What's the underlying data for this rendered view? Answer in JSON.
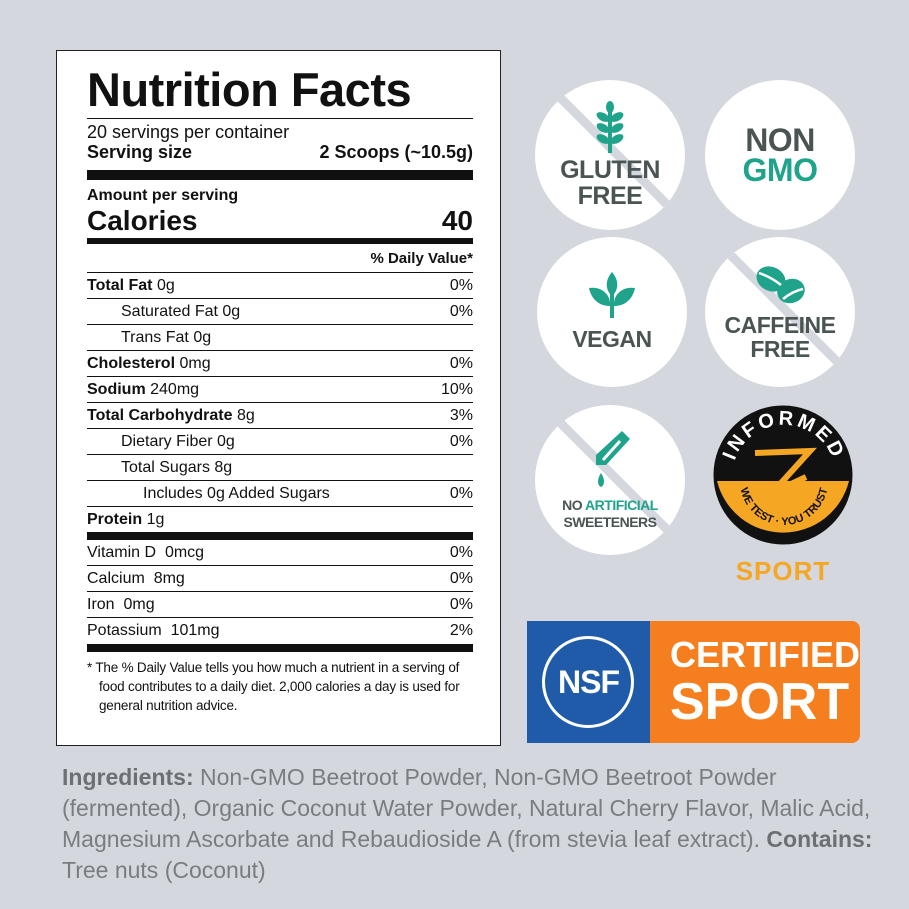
{
  "label": {
    "title": "Nutrition Facts",
    "servings": "20 servings per container",
    "serving_size_label": "Serving size",
    "serving_size_value": "2 Scoops (~10.5g)",
    "amount_per_serving": "Amount per serving",
    "calories_label": "Calories",
    "calories_value": "40",
    "daily_value_header": "% Daily Value*",
    "rows": [
      {
        "name": "Total Fat",
        "amount": "0g",
        "dv": "0%",
        "bold": true,
        "indent": 0
      },
      {
        "name": "Saturated Fat",
        "amount": "0g",
        "dv": "0%",
        "bold": false,
        "indent": 1
      },
      {
        "name": "Trans Fat",
        "amount": "0g",
        "dv": "",
        "bold": false,
        "indent": 1
      },
      {
        "name": "Cholesterol",
        "amount": "0mg",
        "dv": "0%",
        "bold": true,
        "indent": 0
      },
      {
        "name": "Sodium",
        "amount": "240mg",
        "dv": "10%",
        "bold": true,
        "indent": 0
      },
      {
        "name": "Total Carbohydrate",
        "amount": "8g",
        "dv": "3%",
        "bold": true,
        "indent": 0
      },
      {
        "name": "Dietary Fiber",
        "amount": "0g",
        "dv": "0%",
        "bold": false,
        "indent": 1
      },
      {
        "name": "Total Sugars",
        "amount": "8g",
        "dv": "",
        "bold": false,
        "indent": 1
      },
      {
        "name": "Includes 0g Added Sugars",
        "amount": "",
        "dv": "0%",
        "bold": false,
        "indent": 2
      },
      {
        "name": "Protein",
        "amount": "1g",
        "dv": "",
        "bold": true,
        "indent": 0
      }
    ],
    "vitamins": [
      {
        "name": "Vitamin D",
        "amount": "0mcg",
        "dv": "0%"
      },
      {
        "name": "Calcium",
        "amount": "8mg",
        "dv": "0%"
      },
      {
        "name": "Iron",
        "amount": "0mg",
        "dv": "0%"
      },
      {
        "name": "Potassium",
        "amount": "101mg",
        "dv": "2%"
      }
    ],
    "footnote": "* The % Daily Value tells you how much a nutrient in a serving of food contributes to a daily diet. 2,000 calories a day is used for general nutrition advice."
  },
  "badges": {
    "gluten": {
      "line1": "GLUTEN",
      "line2": "FREE",
      "icon": "wheat-icon"
    },
    "nongmo": {
      "line1": "NON",
      "line2": "GMO"
    },
    "vegan": {
      "line1": "VEGAN",
      "icon": "leaf-icon"
    },
    "caffeine": {
      "line1": "CAFFEINE",
      "line2": "FREE",
      "icon": "coffee-bean-icon"
    },
    "sweeteners": {
      "line1a": "NO ",
      "line1b": "ARTIFICIAL",
      "line2": "SWEETENERS",
      "icon": "dropper-icon"
    },
    "informed": {
      "top": "INFORMED",
      "bottom": "WE TEST · YOU TRUST",
      "sport": "SPORT"
    },
    "nsf": {
      "logo": "NSF",
      "line1": "CERTIFIED",
      "line2": "SPORT"
    }
  },
  "colors": {
    "teal": "#1fa38a",
    "gray_text": "#4a5553",
    "nsf_blue": "#1f5ba8",
    "nsf_orange": "#f57f1f",
    "informed_yellow": "#f5a623",
    "background": "#d4d8de"
  },
  "ingredients": {
    "label": "Ingredients:",
    "text": " Non-GMO Beetroot Powder, Non-GMO Beetroot Powder (fermented), Organic Coconut Water Powder, Natural Cherry Flavor, Malic Acid, Magnesium Ascorbate and Rebaudioside A (from stevia leaf extract). ",
    "contains_label": "Contains:",
    "contains_text": " Tree nuts (Coconut)"
  }
}
